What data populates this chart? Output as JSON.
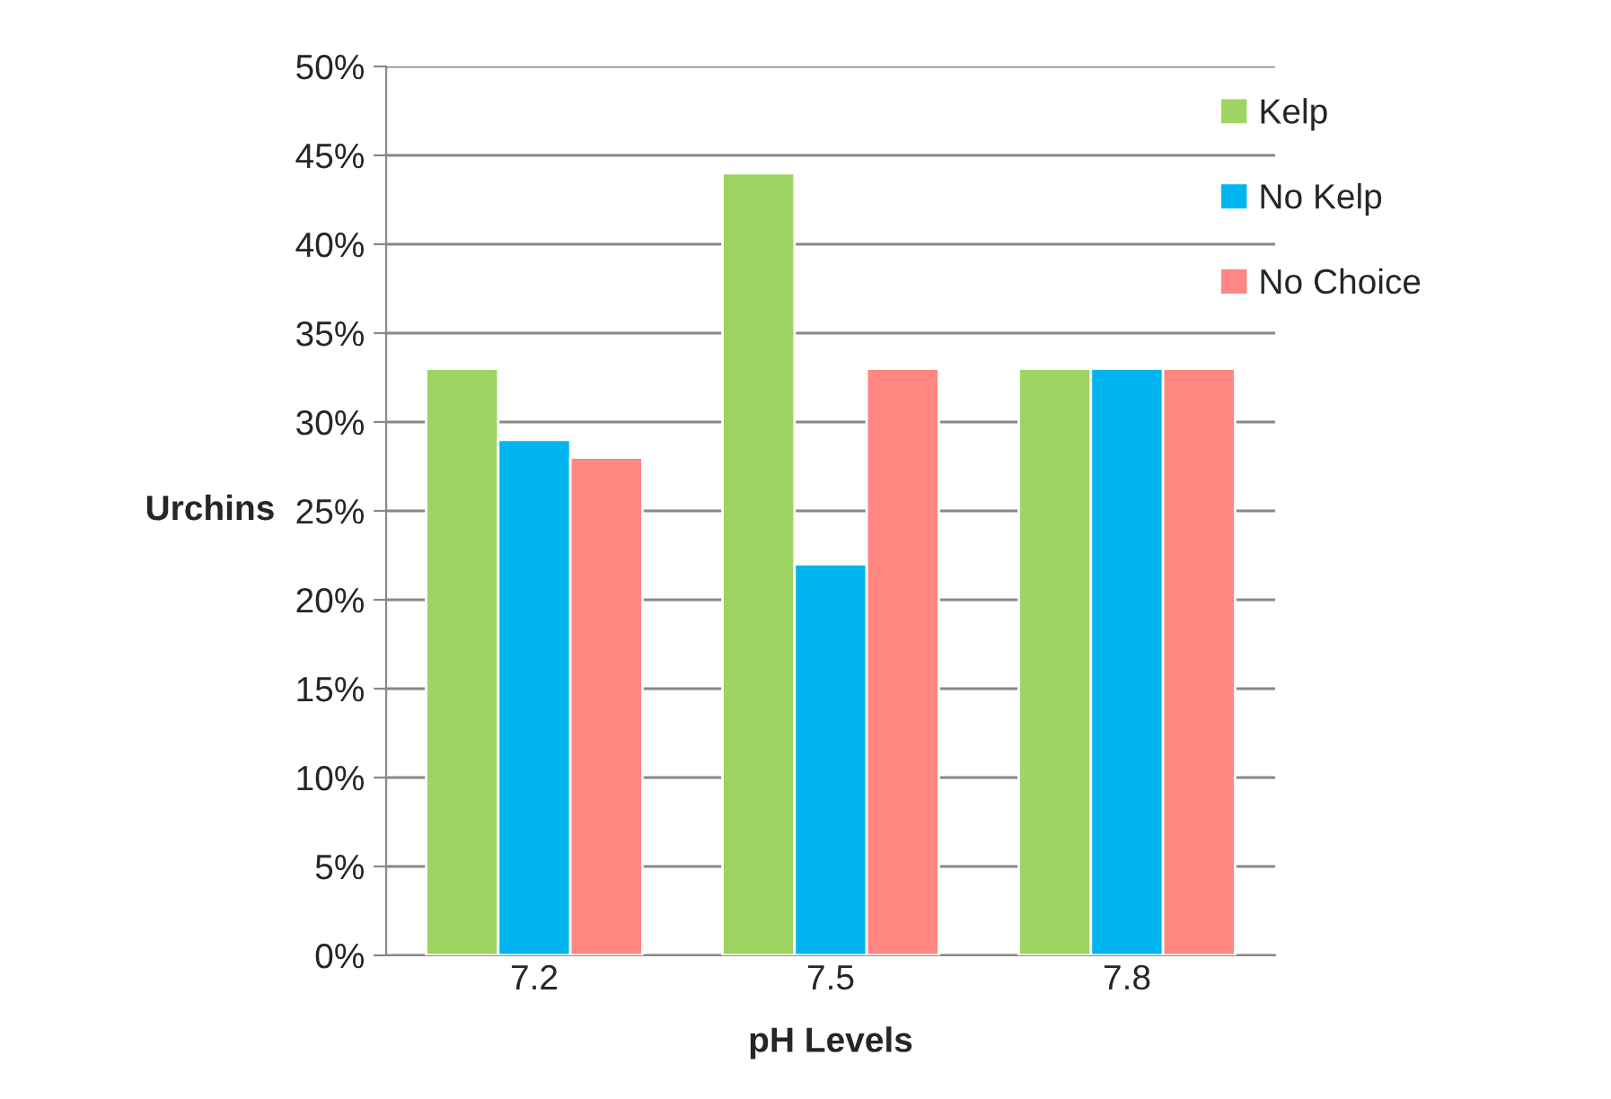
{
  "chart_data": {
    "type": "bar",
    "xlabel": "pH Levels",
    "ylabel": "Urchins",
    "categories": [
      "7.2",
      "7.5",
      "7.8"
    ],
    "series": [
      {
        "name": "Kelp",
        "color": "#9dd462",
        "values": [
          33,
          44,
          33
        ]
      },
      {
        "name": "No Kelp",
        "color": "#00b5ef",
        "values": [
          29,
          22,
          33
        ]
      },
      {
        "name": "No Choice",
        "color": "#ff8681",
        "values": [
          28,
          33,
          33
        ]
      }
    ],
    "ylim": [
      0,
      50
    ],
    "yticks": [
      {
        "value": 0,
        "label": "0%"
      },
      {
        "value": 5,
        "label": "5%"
      },
      {
        "value": 10,
        "label": "10%"
      },
      {
        "value": 15,
        "label": "15%"
      },
      {
        "value": 20,
        "label": "20%"
      },
      {
        "value": 25,
        "label": "25%"
      },
      {
        "value": 30,
        "label": "30%"
      },
      {
        "value": 35,
        "label": "35%"
      },
      {
        "value": 40,
        "label": "40%"
      },
      {
        "value": 45,
        "label": "45%"
      },
      {
        "value": 50,
        "label": "50%"
      }
    ],
    "grid": "y",
    "legend": "top right"
  }
}
